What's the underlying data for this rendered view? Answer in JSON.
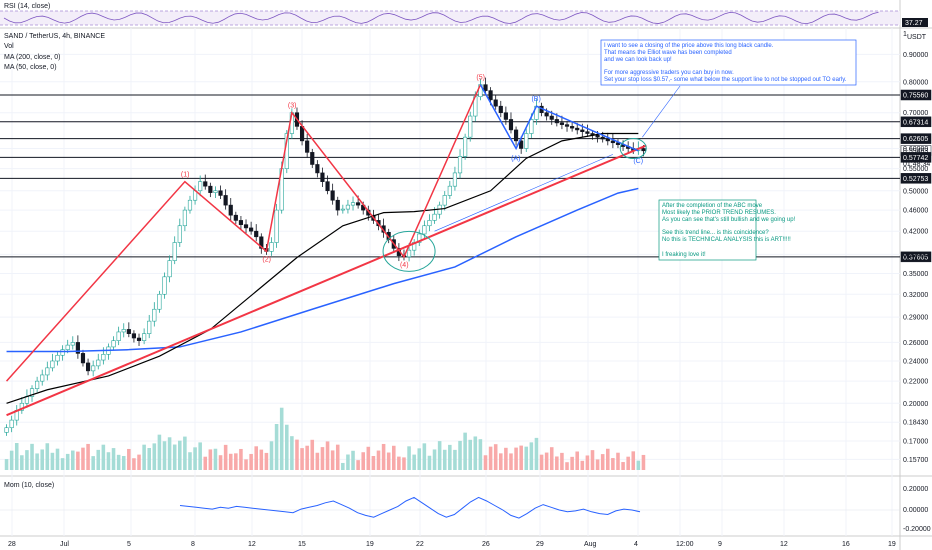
{
  "rsi_panel": {
    "label": "RSI (14, close)",
    "last_value": "37.27"
  },
  "main_panel": {
    "legend": [
      "SAND / TetherUS, 4h, BINANCE",
      "Vol",
      "MA (200, close, 0)",
      "MA (50, close, 0)"
    ],
    "currency": "USDT",
    "top_tick": "1"
  },
  "mom_panel": {
    "label": "Mom (10, close)",
    "ticks": [
      "0.20000",
      "0.00000",
      "-0.20000"
    ]
  },
  "colors": {
    "up": "#26a69a",
    "down": "#131722",
    "ma50": "#000000",
    "ma200": "#2962ff",
    "trendline": "#f23645",
    "elliott": "#f23645",
    "abc": "#2962ff",
    "annotation_text": "#2962ff",
    "annotation2_text": "#089981",
    "mom": "#2962ff",
    "rsi_box": "#7e57c2"
  },
  "annotations": {
    "top_box": [
      "I want to see a closing of the price above this long black candle.",
      "That means the Elliot wave has been completed",
      "and we can look back up!",
      "",
      "For more aggressive traders you can buy in now.",
      "Set your stop loss $0.57,- some what below the support line to not be stopped out TO early."
    ],
    "bottom_box": [
      "After the completion of the ABC move",
      "Most likely the PRIOR TREND RESUMES.",
      "As you can see that's still bullish and we going up!",
      "",
      "See this trend line... is this coincidence?",
      "No this is TECHNICAL ANALYSIS this is ART!!!!!",
      "",
      "I freaking love it!"
    ]
  },
  "countdown": "01:48:34",
  "chart_data": {
    "type": "candlestick",
    "symbol": "SAND / TetherUS",
    "interval": "4h",
    "exchange": "BINANCE",
    "y_scale": "log",
    "ylim": [
      0.15,
      1.0
    ],
    "y_ticks": [
      "0.90000",
      "0.80000",
      "0.70000",
      "0.60000",
      "0.55000",
      "0.50000",
      "0.46000",
      "0.42000",
      "0.38000",
      "0.35000",
      "0.32000",
      "0.29000",
      "0.26000",
      "0.24000",
      "0.22000",
      "0.20000",
      "0.18430",
      "0.17000",
      "0.15700"
    ],
    "x_ticks": [
      "28",
      "Jul",
      "5",
      "8",
      "12",
      "15",
      "19",
      "22",
      "26",
      "29",
      "Aug",
      "4",
      "12:00",
      "9",
      "12",
      "16",
      "19"
    ],
    "price_labels": [
      "0.75560",
      "0.67314",
      "0.62605",
      "0.59463",
      "0.57742",
      "0.52753",
      "0.37605"
    ],
    "horizontal_levels": [
      0.7556,
      0.67314,
      0.62605,
      0.57742,
      0.52753,
      0.37605
    ],
    "close_series": [
      0.18,
      0.186,
      0.194,
      0.2,
      0.206,
      0.213,
      0.22,
      0.226,
      0.233,
      0.24,
      0.246,
      0.252,
      0.257,
      0.26,
      0.248,
      0.238,
      0.23,
      0.235,
      0.241,
      0.247,
      0.255,
      0.262,
      0.272,
      0.275,
      0.27,
      0.265,
      0.262,
      0.27,
      0.285,
      0.3,
      0.32,
      0.345,
      0.37,
      0.4,
      0.43,
      0.46,
      0.48,
      0.5,
      0.52,
      0.51,
      0.496,
      0.5,
      0.49,
      0.47,
      0.45,
      0.44,
      0.432,
      0.426,
      0.42,
      0.41,
      0.39,
      0.385,
      0.4,
      0.46,
      0.55,
      0.64,
      0.7,
      0.66,
      0.62,
      0.59,
      0.56,
      0.54,
      0.52,
      0.5,
      0.48,
      0.46,
      0.462,
      0.47,
      0.475,
      0.47,
      0.46,
      0.45,
      0.44,
      0.43,
      0.418,
      0.405,
      0.39,
      0.378,
      0.376,
      0.387,
      0.4,
      0.415,
      0.43,
      0.44,
      0.452,
      0.47,
      0.49,
      0.51,
      0.54,
      0.58,
      0.63,
      0.69,
      0.75,
      0.79,
      0.77,
      0.74,
      0.72,
      0.7,
      0.68,
      0.65,
      0.62,
      0.6,
      0.64,
      0.68,
      0.72,
      0.7,
      0.69,
      0.68,
      0.67,
      0.665,
      0.66,
      0.655,
      0.65,
      0.645,
      0.64,
      0.635,
      0.63,
      0.625,
      0.62,
      0.615,
      0.61,
      0.605,
      0.6,
      0.595,
      0.6,
      0.594
    ],
    "ma50_points": [
      [
        0,
        0.2
      ],
      [
        8,
        0.212
      ],
      [
        20,
        0.225
      ],
      [
        30,
        0.245
      ],
      [
        40,
        0.275
      ],
      [
        50,
        0.33
      ],
      [
        57,
        0.375
      ],
      [
        66,
        0.43
      ],
      [
        74,
        0.455
      ],
      [
        80,
        0.457
      ],
      [
        86,
        0.463
      ],
      [
        95,
        0.5
      ],
      [
        102,
        0.575
      ],
      [
        109,
        0.62
      ],
      [
        117,
        0.64
      ],
      [
        124,
        0.64
      ]
    ],
    "ma200_points": [
      [
        0,
        0.25
      ],
      [
        12,
        0.25
      ],
      [
        24,
        0.252
      ],
      [
        34,
        0.255
      ],
      [
        46,
        0.272
      ],
      [
        60,
        0.3
      ],
      [
        76,
        0.335
      ],
      [
        88,
        0.36
      ],
      [
        100,
        0.41
      ],
      [
        112,
        0.46
      ],
      [
        120,
        0.495
      ],
      [
        124,
        0.505
      ]
    ],
    "trendline": [
      [
        0,
        0.19
      ],
      [
        124,
        0.6
      ]
    ],
    "elliott_waves": [
      {
        "label": "(1)",
        "bar": 35,
        "price": 0.52
      },
      {
        "label": "(2)",
        "bar": 51,
        "price": 0.385
      },
      {
        "label": "(3)",
        "bar": 56,
        "price": 0.7
      },
      {
        "label": "(4)",
        "bar": 78,
        "price": 0.376
      },
      {
        "label": "(5)",
        "bar": 93,
        "price": 0.79
      }
    ],
    "abc_waves": [
      {
        "label": "(A)",
        "bar": 100,
        "price": 0.6
      },
      {
        "label": "(B)",
        "bar": 104,
        "price": 0.72
      },
      {
        "label": "(C)",
        "bar": 124,
        "price": 0.594
      }
    ],
    "mom_series": [
      0.05,
      0.04,
      0.03,
      0.02,
      0.01,
      0.03,
      0.02,
      0.04,
      0.03,
      0.02,
      0.01,
      0.0,
      -0.01,
      -0.02,
      -0.03,
      0.01,
      0.03,
      0.05,
      0.08,
      0.1,
      0.06,
      0.02,
      -0.03,
      -0.06,
      -0.08,
      -0.04,
      0.0,
      0.04,
      0.1,
      0.14,
      0.08,
      0.02,
      -0.04,
      -0.08,
      -0.05,
      0.02,
      0.09,
      0.14,
      0.1,
      0.05,
      0.0,
      -0.06,
      -0.09,
      -0.04,
      0.02,
      0.06,
      0.03,
      0.0,
      -0.02,
      -0.01,
      0.01,
      -0.02,
      -0.04,
      -0.05,
      -0.01,
      0.01,
      0.0,
      -0.02
    ]
  }
}
